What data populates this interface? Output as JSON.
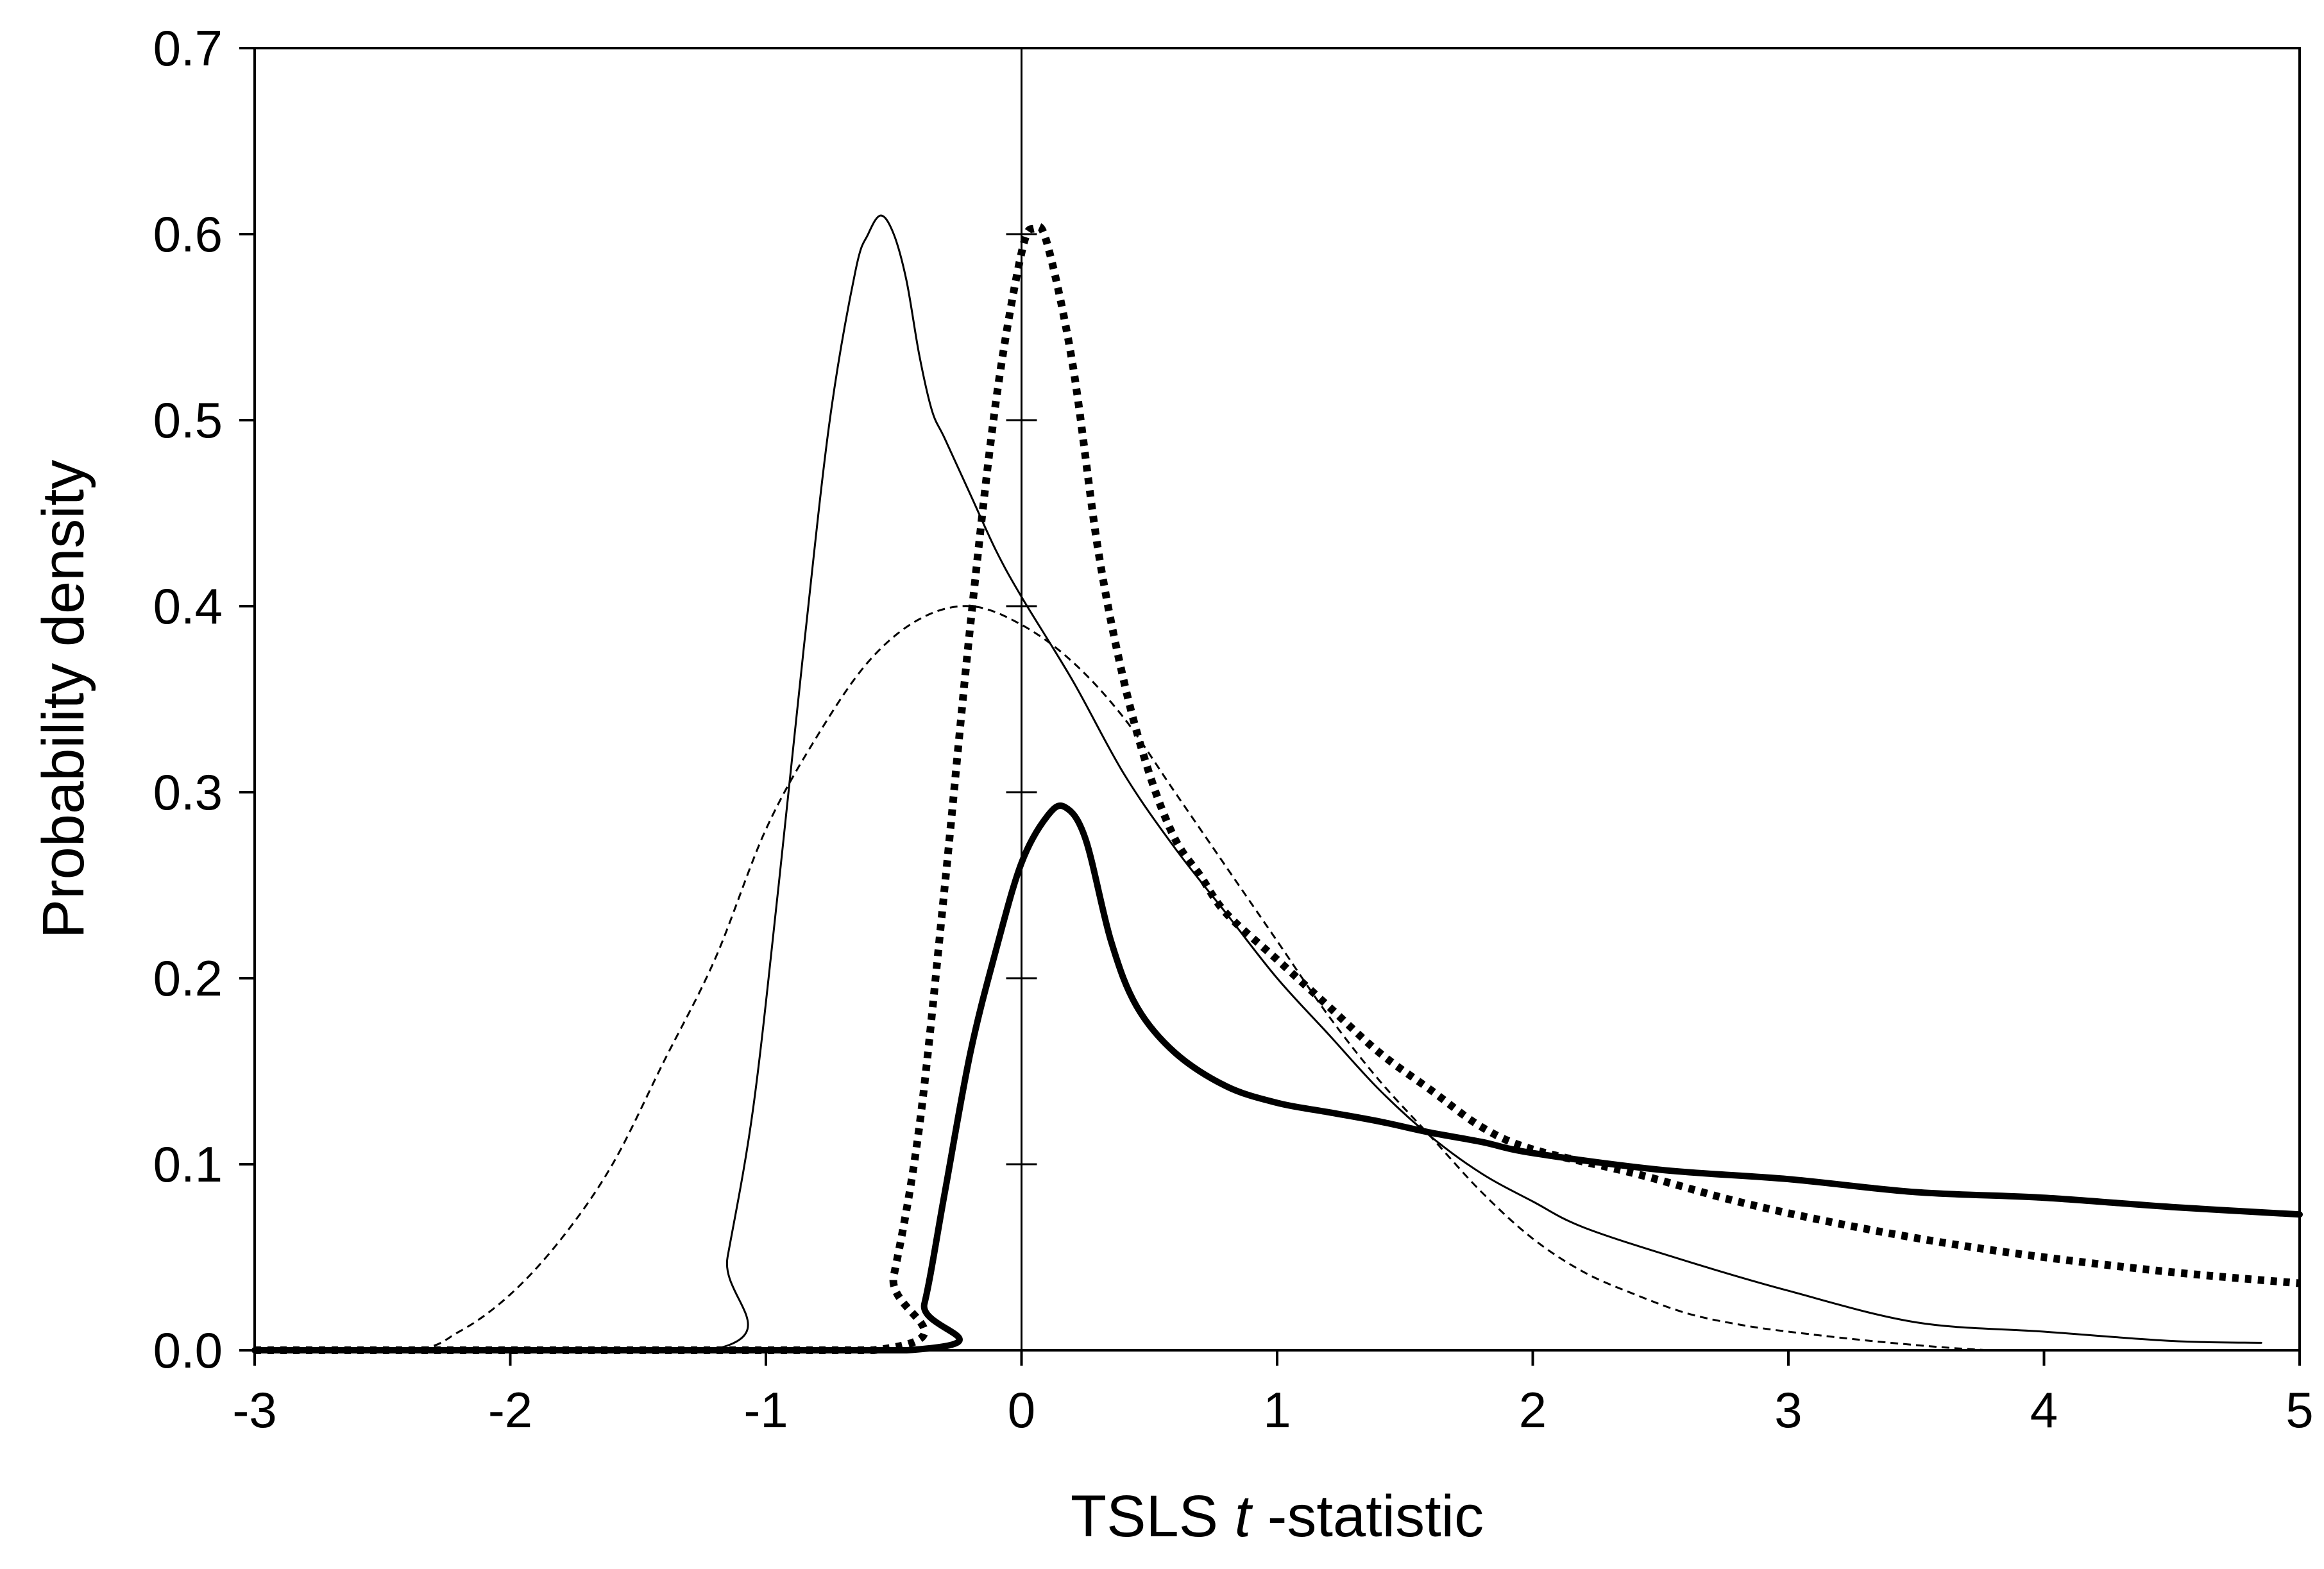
{
  "chart_data": {
    "type": "line",
    "title": "",
    "xlabel_prefix": "TSLS ",
    "xlabel_italic": "t",
    "xlabel_suffix": " -statistic",
    "ylabel": "Probability density",
    "xlim": [
      -3,
      5
    ],
    "ylim": [
      0,
      0.7
    ],
    "x_ticks": [
      -3,
      -2,
      -1,
      0,
      1,
      2,
      3,
      4,
      5
    ],
    "x_tick_labels": [
      "-3",
      "-2",
      "-1",
      "0",
      "1",
      "2",
      "3",
      "4",
      "5"
    ],
    "y_ticks": [
      0,
      0.1,
      0.2,
      0.3,
      0.4,
      0.5,
      0.6,
      0.7
    ],
    "y_tick_labels": [
      "0.0",
      "0.1",
      "0.2",
      "0.3",
      "0.4",
      "0.5",
      "0.6",
      "0.7"
    ],
    "grid": false,
    "legend": "none",
    "series": [
      {
        "style": "thin-dashed",
        "x": [
          -3,
          -2.4,
          -2.2,
          -2.0,
          -1.8,
          -1.6,
          -1.4,
          -1.2,
          -1.0,
          -0.8,
          -0.6,
          -0.4,
          -0.2,
          0.0,
          0.2,
          0.4,
          0.6,
          0.8,
          1.0,
          1.2,
          1.4,
          1.6,
          1.8,
          2.0,
          2.2,
          2.4,
          2.6,
          2.8,
          3.0,
          3.4,
          3.8,
          4.2,
          4.6,
          5.0
        ],
        "y": [
          0.0,
          0.0,
          0.01,
          0.03,
          0.06,
          0.1,
          0.155,
          0.21,
          0.28,
          0.33,
          0.37,
          0.393,
          0.4,
          0.39,
          0.37,
          0.34,
          0.3,
          0.26,
          0.22,
          0.18,
          0.145,
          0.115,
          0.085,
          0.06,
          0.042,
          0.03,
          0.02,
          0.014,
          0.01,
          0.004,
          0.0,
          0.0,
          0.0,
          0.0
        ]
      },
      {
        "style": "thin-solid",
        "x": [
          -3,
          -1.22,
          -1.15,
          -1.05,
          -0.95,
          -0.85,
          -0.75,
          -0.65,
          -0.6,
          -0.55,
          -0.5,
          -0.45,
          -0.4,
          -0.35,
          -0.3,
          -0.2,
          -0.1,
          0.0,
          0.2,
          0.4,
          0.6,
          0.8,
          1.0,
          1.2,
          1.4,
          1.6,
          1.8,
          2.0,
          2.2,
          2.6,
          3.0,
          3.5,
          4.0,
          4.5,
          4.85
        ],
        "y": [
          0.0,
          0.0,
          0.05,
          0.13,
          0.25,
          0.38,
          0.5,
          0.58,
          0.6,
          0.61,
          0.6,
          0.575,
          0.535,
          0.505,
          0.49,
          0.46,
          0.43,
          0.405,
          0.36,
          0.31,
          0.27,
          0.235,
          0.2,
          0.17,
          0.14,
          0.115,
          0.095,
          0.08,
          0.066,
          0.048,
          0.032,
          0.015,
          0.01,
          0.005,
          0.004
        ]
      },
      {
        "style": "thick-dotted",
        "x": [
          -3,
          -0.58,
          -0.5,
          -0.4,
          -0.3,
          -0.2,
          -0.1,
          0.0,
          0.05,
          0.1,
          0.2,
          0.3,
          0.4,
          0.5,
          0.6,
          0.7,
          0.8,
          1.0,
          1.2,
          1.4,
          1.6,
          1.8,
          2.0,
          2.4,
          2.8,
          3.2,
          3.6,
          4.0,
          4.5,
          5.0
        ],
        "y": [
          0.0,
          0.0,
          0.04,
          0.12,
          0.25,
          0.39,
          0.51,
          0.59,
          0.603,
          0.595,
          0.53,
          0.43,
          0.36,
          0.31,
          0.275,
          0.255,
          0.235,
          0.21,
          0.185,
          0.16,
          0.14,
          0.12,
          0.108,
          0.095,
          0.08,
          0.068,
          0.058,
          0.05,
          0.042,
          0.036
        ]
      },
      {
        "style": "thick-solid",
        "x": [
          -3,
          -0.45,
          -0.38,
          -0.3,
          -0.2,
          -0.1,
          0.0,
          0.1,
          0.17,
          0.25,
          0.35,
          0.45,
          0.6,
          0.8,
          1.0,
          1.2,
          1.4,
          1.6,
          1.8,
          2.0,
          2.5,
          3.0,
          3.5,
          4.0,
          4.5,
          5.0
        ],
        "y": [
          0.0,
          0.0,
          0.025,
          0.085,
          0.16,
          0.215,
          0.262,
          0.287,
          0.292,
          0.275,
          0.22,
          0.185,
          0.16,
          0.142,
          0.133,
          0.128,
          0.123,
          0.117,
          0.112,
          0.106,
          0.097,
          0.092,
          0.085,
          0.082,
          0.077,
          0.073
        ]
      }
    ]
  }
}
